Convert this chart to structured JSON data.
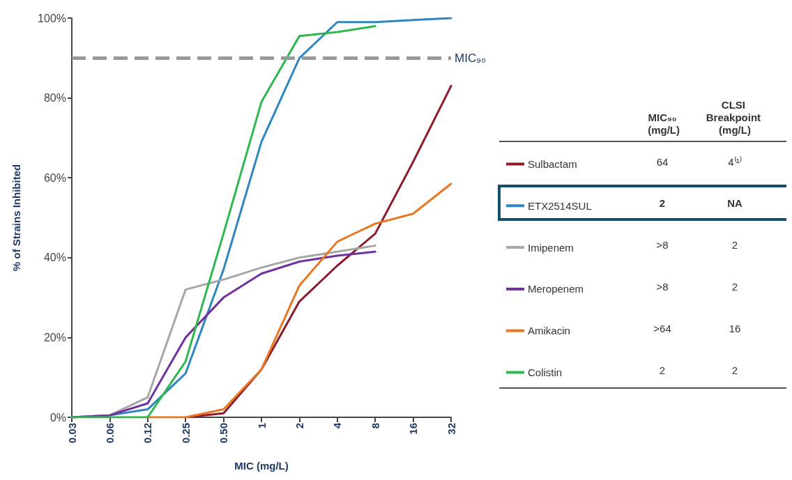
{
  "chart_data": {
    "type": "line",
    "xlabel": "MIC (mg/L)",
    "ylabel": "% of Strains Inhibited",
    "categories": [
      "0.03",
      "0.06",
      "0.12",
      "0.25",
      "0.50",
      "1",
      "2",
      "4",
      "8",
      "16",
      "32"
    ],
    "ylim": [
      0,
      100
    ],
    "yticks": [
      {
        "value": 0,
        "label": "0%"
      },
      {
        "value": 20,
        "label": "20%"
      },
      {
        "value": 40,
        "label": "40%"
      },
      {
        "value": 60,
        "label": "60%"
      },
      {
        "value": 80,
        "label": "80%"
      },
      {
        "value": 100,
        "label": "100%"
      }
    ],
    "series": [
      {
        "name": "Sulbactam",
        "color": "#8b1a2b",
        "values": [
          null,
          null,
          null,
          0,
          1,
          12,
          29,
          38,
          46,
          64,
          83
        ]
      },
      {
        "name": "ETX2514SUL",
        "color": "#2e86c1",
        "values": [
          0,
          0.5,
          2,
          11,
          37,
          69,
          90,
          99,
          99,
          99.5,
          100
        ]
      },
      {
        "name": "Imipenem",
        "color": "#a6a6a6",
        "values": [
          0,
          0.5,
          5,
          32,
          34.5,
          37.5,
          40,
          41.5,
          43,
          null,
          null
        ]
      },
      {
        "name": "Meropenem",
        "color": "#7030a0",
        "values": [
          0,
          0.5,
          3.5,
          20,
          30,
          36,
          39,
          40.5,
          41.5,
          null,
          null
        ]
      },
      {
        "name": "Amikacin",
        "color": "#e87722",
        "values": [
          null,
          null,
          0,
          0,
          2,
          12,
          33,
          44,
          48.5,
          51,
          58.5
        ]
      },
      {
        "name": "Colistin",
        "color": "#2db84d",
        "values": [
          0,
          0,
          0,
          14,
          46,
          79,
          95.5,
          96.5,
          98,
          null,
          null
        ]
      }
    ],
    "ref_lines": [
      {
        "axis": "y",
        "value": 90,
        "label": "MIC₉₀",
        "color": "#999999",
        "line_style": "dashed"
      }
    ],
    "legend": "right",
    "grid": false,
    "marker": "none",
    "line_style": "solid",
    "annotations": [
      "MIC₉₀ (mg/L)",
      "CLSI Breakpoint (mg/L)",
      "64",
      "4⁽¹⁾",
      "2",
      "NA",
      ">8",
      "2",
      ">8",
      "2",
      ">64",
      "16",
      "2",
      "2"
    ]
  }
}
